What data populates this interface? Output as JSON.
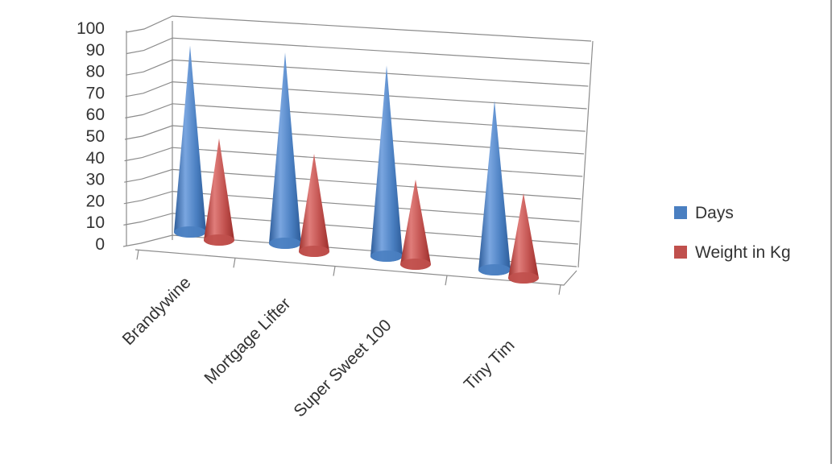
{
  "chart_data": {
    "type": "bar",
    "style": "3d-cone",
    "categories": [
      "Brandywine",
      "Mortgage Lifter",
      "Super Sweet 100",
      "Tiny Tim"
    ],
    "series": [
      {
        "name": "Days",
        "values": [
          88,
          90,
          90,
          80
        ],
        "color": "#4a7fc1"
      },
      {
        "name": "Weight in Kg",
        "values": [
          48,
          46,
          40,
          40
        ],
        "color": "#c0504d"
      }
    ],
    "ylim": [
      0,
      100
    ],
    "yticks": [
      "0",
      "10",
      "20",
      "30",
      "40",
      "50",
      "60",
      "70",
      "80",
      "90",
      "100"
    ],
    "grid": true,
    "legend_position": "right"
  }
}
